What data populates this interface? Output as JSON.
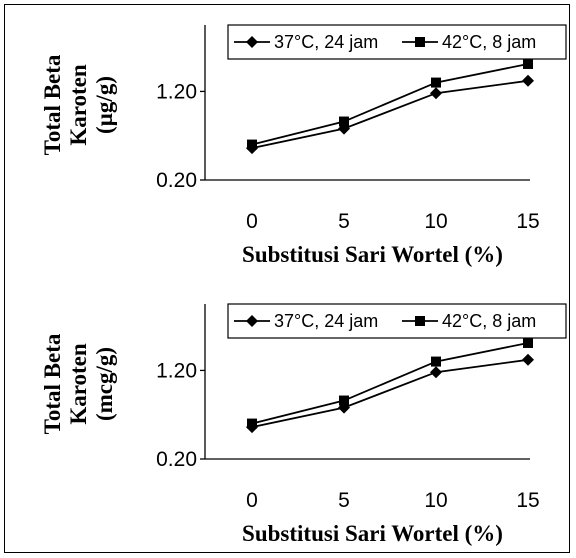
{
  "chart_data": [
    {
      "type": "line",
      "ylabel_lines": [
        "Total Beta",
        "Karoten",
        "(µg/g)"
      ],
      "xlabel": "Substitusi Sari Wortel (%)",
      "x": [
        0,
        5,
        10,
        15
      ],
      "y_ticks": [
        "0.20",
        "1.20"
      ],
      "ylim": [
        0.2,
        1.95
      ],
      "grid": false,
      "legend_position": "top",
      "series": [
        {
          "name": "37°C, 24 jam",
          "marker": "diamond",
          "values": [
            0.56,
            0.78,
            1.18,
            1.32
          ]
        },
        {
          "name": "42°C, 8 jam",
          "marker": "square",
          "values": [
            0.6,
            0.86,
            1.3,
            1.51
          ]
        }
      ]
    },
    {
      "type": "line",
      "ylabel_lines": [
        "Total Beta",
        "Karoten",
        "(mcg/g)"
      ],
      "xlabel": "Substitusi Sari Wortel (%)",
      "x": [
        0,
        5,
        10,
        15
      ],
      "y_ticks": [
        "0.20",
        "1.20"
      ],
      "ylim": [
        0.2,
        1.95
      ],
      "grid": false,
      "legend_position": "top",
      "series": [
        {
          "name": "37°C, 24 jam",
          "marker": "diamond",
          "values": [
            0.56,
            0.78,
            1.18,
            1.32
          ]
        },
        {
          "name": "42°C, 8 jam",
          "marker": "square",
          "values": [
            0.6,
            0.86,
            1.3,
            1.51
          ]
        }
      ]
    }
  ]
}
